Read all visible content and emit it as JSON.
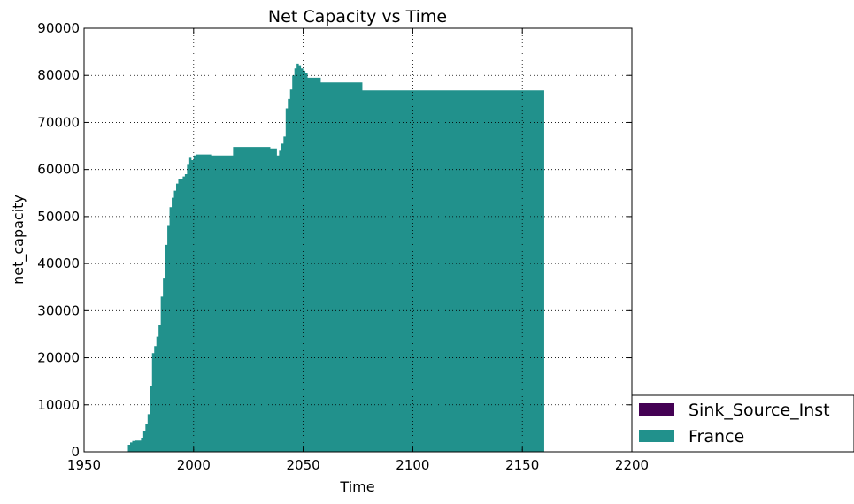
{
  "chart_data": {
    "type": "area",
    "title": "Net Capacity vs Time",
    "xlabel": "Time",
    "ylabel": "net_capacity",
    "xlim": [
      1950,
      2200
    ],
    "ylim": [
      0,
      90000
    ],
    "xticks": [
      "1950",
      "2000",
      "2050",
      "2100",
      "2150",
      "2200"
    ],
    "yticks": [
      "0",
      "10000",
      "20000",
      "30000",
      "40000",
      "50000",
      "60000",
      "70000",
      "80000",
      "90000"
    ],
    "grid": true,
    "stacked": true,
    "legend": {
      "placement": "outside-lower-right",
      "entries": [
        "Sink_Source_Inst",
        "France"
      ]
    },
    "series": [
      {
        "name": "Sink_Source_Inst",
        "color": "#440154",
        "x": [
          1970,
          2160
        ],
        "values": [
          0,
          0
        ]
      },
      {
        "name": "France",
        "color": "#21918c",
        "x": [
          1970,
          1971,
          1972,
          1973,
          1974,
          1975,
          1976,
          1977,
          1978,
          1979,
          1980,
          1981,
          1982,
          1983,
          1984,
          1985,
          1986,
          1987,
          1988,
          1989,
          1990,
          1991,
          1992,
          1993,
          1994,
          1995,
          1996,
          1997,
          1998,
          1999,
          2000,
          2001,
          2002,
          2003,
          2004,
          2005,
          2006,
          2007,
          2008,
          2009,
          2010,
          2012,
          2015,
          2018,
          2020,
          2025,
          2030,
          2035,
          2037,
          2038,
          2039,
          2040,
          2041,
          2042,
          2043,
          2044,
          2045,
          2046,
          2047,
          2048,
          2049,
          2050,
          2051,
          2052,
          2055,
          2058,
          2060,
          2065,
          2070,
          2077,
          2080,
          2090,
          2100,
          2110,
          2120,
          2130,
          2140,
          2150,
          2160
        ],
        "values": [
          1500,
          2000,
          2300,
          2400,
          2400,
          2400,
          3000,
          4500,
          6000,
          8000,
          14000,
          21000,
          22500,
          24500,
          27000,
          33000,
          37000,
          44000,
          48000,
          52000,
          54000,
          55500,
          57000,
          58000,
          58000,
          58500,
          59000,
          61000,
          62500,
          62000,
          63000,
          63200,
          63200,
          63200,
          63200,
          63200,
          63200,
          63200,
          63000,
          63000,
          63000,
          63000,
          63000,
          64800,
          64800,
          64800,
          64800,
          64500,
          64500,
          63000,
          64000,
          65500,
          67000,
          73000,
          75000,
          77000,
          80000,
          81500,
          82500,
          82000,
          81500,
          81000,
          80500,
          79500,
          79500,
          78500,
          78500,
          78500,
          78500,
          76800,
          76800,
          76800,
          76800,
          76800,
          76800,
          76800,
          76800,
          76800,
          76800
        ]
      }
    ]
  }
}
